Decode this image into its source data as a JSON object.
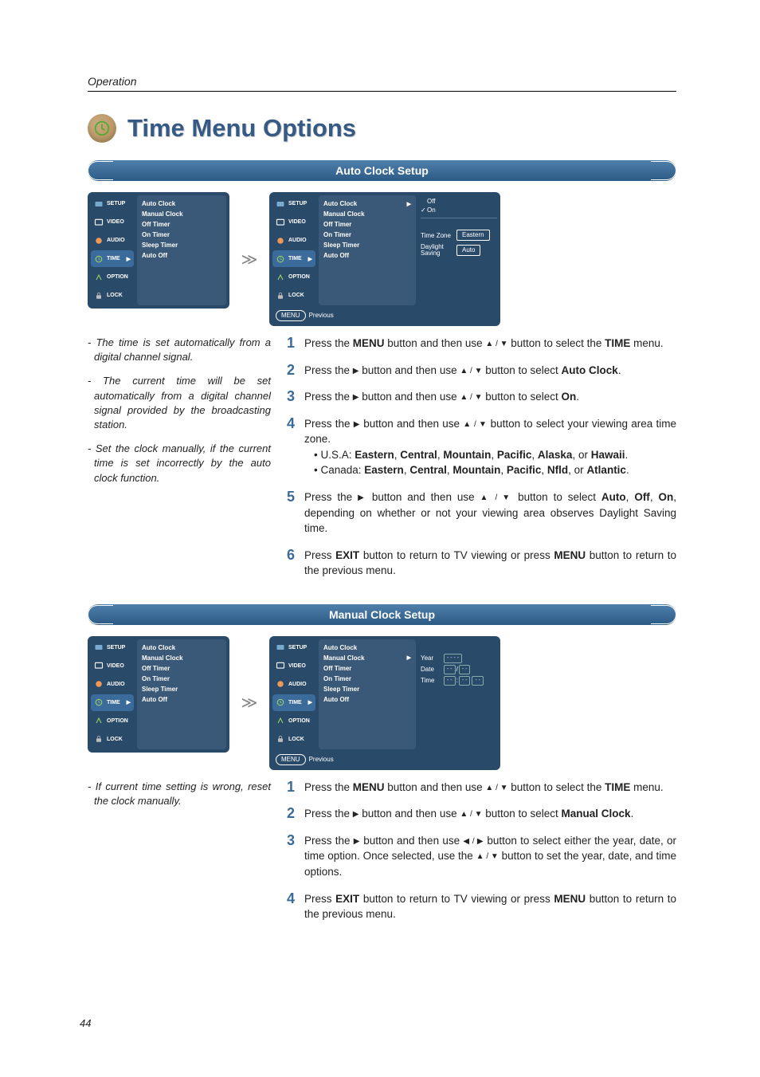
{
  "header": {
    "operation": "Operation",
    "title": "Time Menu Options",
    "page_number": "44"
  },
  "colors": {
    "title": "#355a86",
    "step_num": "#3a6a9a",
    "menu_bg": "#2a4a6a",
    "menu_panel": "#3a5878",
    "pill_bg": "#4f7fab"
  },
  "nav_labels": {
    "setup": "SETUP",
    "video": "VIDEO",
    "audio": "AUDIO",
    "time": "TIME",
    "option": "OPTION",
    "lock": "LOCK"
  },
  "time_menu_items": [
    "Auto Clock",
    "Manual Clock",
    "Off Timer",
    "On Timer",
    "Sleep Timer",
    "Auto Off"
  ],
  "auto_clock": {
    "header": "Auto Clock Setup",
    "right_panel": {
      "options": [
        {
          "label": "Off",
          "checked": false
        },
        {
          "label": "On",
          "checked": true
        }
      ],
      "time_zone_label": "Time Zone",
      "time_zone_value": "Eastern",
      "daylight_label": "Daylight Saving",
      "daylight_value": "Auto",
      "footer_menu": "MENU",
      "footer_prev": "Previous"
    },
    "notes": [
      "- The time is set automatically from a digital channel signal.",
      "- The current time will be set automatically from a digital channel signal provided by the broadcasting station.",
      "- Set the clock manually, if the current time is set incorrectly by the auto clock function."
    ],
    "steps": [
      {
        "n": "1",
        "pre": "Press the ",
        "b1": "MENU",
        "mid": " button and then use ",
        "sym": "▲ / ▼",
        "mid2": " button to select the ",
        "b2": "TIME",
        "post": " menu."
      },
      {
        "n": "2",
        "pre": "Press the ",
        "sym0": "▶",
        "mid": " button and then use ",
        "sym": "▲ / ▼",
        "mid2": " button to select ",
        "b2": "Auto Clock",
        "post": "."
      },
      {
        "n": "3",
        "pre": "Press the ",
        "sym0": "▶",
        "mid": " button and then use ",
        "sym": "▲ / ▼",
        "mid2": " button to select ",
        "b2": "On",
        "post": "."
      },
      {
        "n": "4",
        "pre": "Press the ",
        "sym0": "▶",
        "mid": " button and then use ",
        "sym": "▲ / ▼",
        "mid2": " button to select your viewing area time zone.",
        "sub1": "• U.S.A: Eastern, Central, Mountain, Pacific, Alaska, or Hawaii.",
        "sub2": "• Canada: Eastern, Central, Mountain, Pacific, Nfld, or Atlantic."
      },
      {
        "n": "5",
        "pre": "Press the ",
        "sym0": "▶",
        "mid": " button and then use ",
        "sym": "▲ / ▼",
        "mid2": " button to select ",
        "b2": "Auto",
        "b3": "Off",
        "b4": "On",
        "post": ", depending on whether or not your viewing area observes Daylight Saving time."
      },
      {
        "n": "6",
        "pre": "Press ",
        "b1": "EXIT",
        "mid": " button to return to TV viewing or press ",
        "b2": "MENU",
        "post": " button to return to the previous menu."
      }
    ]
  },
  "manual_clock": {
    "header": "Manual Clock Setup",
    "right_panel": {
      "year_label": "Year",
      "year_val": "- - - -",
      "date_label": "Date",
      "date_mm": "- -",
      "date_dd": "- -",
      "time_label": "Time",
      "time_hh": "- -",
      "time_mm": "- -",
      "time_ap": "- -",
      "footer_menu": "MENU",
      "footer_prev": "Previous"
    },
    "notes": [
      "- If current time setting is wrong, reset the clock manually."
    ],
    "steps": [
      {
        "n": "1",
        "pre": "Press the ",
        "b1": "MENU",
        "mid": " button and then use ",
        "sym": "▲ / ▼",
        "mid2": " button to select the ",
        "b2": "TIME",
        "post": " menu."
      },
      {
        "n": "2",
        "pre": "Press the ",
        "sym0": "▶",
        "mid": " button and then use ",
        "sym": "▲ / ▼",
        "mid2": " button to select ",
        "b2": "Manual Clock",
        "post": "."
      },
      {
        "n": "3",
        "pre": "Press the ",
        "sym0": "▶",
        "mid": " button and then use ",
        "sym": "◀ / ▶",
        "mid2": " button to select either the year, date, or time option. Once selected, use the ",
        "sym2": "▲ / ▼",
        "post": " button to set the year, date, and time options."
      },
      {
        "n": "4",
        "pre": "Press ",
        "b1": "EXIT",
        "mid": " button to return to TV viewing or press ",
        "b2": "MENU",
        "post": " button to return to the previous menu."
      }
    ]
  }
}
